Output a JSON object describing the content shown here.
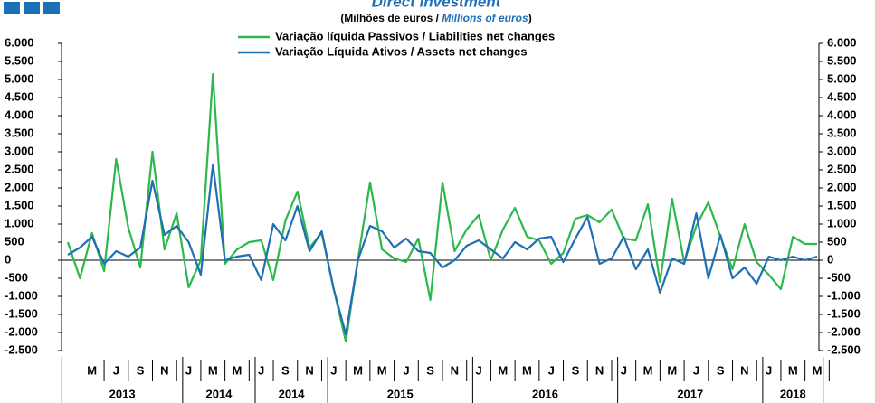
{
  "chart_data": {
    "type": "line",
    "title": "Direct investment",
    "subtitle": {
      "prefix": "(Milhões de euros / ",
      "emphasis": "Millions of euros",
      "suffix": ")"
    },
    "categories": [
      null,
      null,
      "M",
      null,
      "J",
      null,
      "S",
      null,
      "N",
      null,
      "J",
      null,
      "M",
      null,
      "M",
      null,
      "J",
      null,
      "S",
      null,
      "N",
      null,
      "J",
      null,
      "M",
      null,
      "M",
      null,
      "J",
      null,
      "S",
      null,
      "N",
      null,
      "J",
      null,
      "M",
      null,
      "M",
      null,
      "J",
      null,
      "S",
      null,
      "N",
      null,
      "J",
      null,
      "M",
      null,
      "M",
      null,
      "J",
      null,
      "S",
      null,
      "N",
      null,
      "J",
      null,
      "M",
      null,
      "M"
    ],
    "groups": [
      {
        "label": "2013",
        "first": 0,
        "last": 9
      },
      {
        "label": "2014",
        "first": 10,
        "last": 15
      },
      {
        "label": "2014",
        "first": 16,
        "last": 21
      },
      {
        "label": "2015",
        "first": 22,
        "last": 33
      },
      {
        "label": "2016",
        "first": 34,
        "last": 45
      },
      {
        "label": "2017",
        "first": 46,
        "last": 57
      },
      {
        "label": "2018",
        "first": 58,
        "last": 62
      }
    ],
    "series": [
      {
        "name": "Variação líquida Passivos / Liabilities net changes",
        "color": "#2db84d",
        "values": [
          500,
          -500,
          750,
          -300,
          2800,
          900,
          -200,
          3000,
          300,
          1300,
          -750,
          0,
          5150,
          -100,
          300,
          500,
          550,
          -550,
          1100,
          1900,
          350,
          750,
          -800,
          -2250,
          0,
          2150,
          300,
          50,
          -50,
          600,
          -1100,
          2150,
          250,
          850,
          1250,
          0,
          850,
          1450,
          650,
          550,
          -100,
          200,
          1150,
          1250,
          1050,
          1400,
          600,
          550,
          1550,
          -600,
          1700,
          -50,
          950,
          1600,
          650,
          -250,
          1000,
          -50,
          -400,
          -800,
          650,
          450,
          450
        ]
      },
      {
        "name": "Variação Líquida Ativos / Assets net changes",
        "color": "#1f6fb5",
        "values": [
          150,
          350,
          650,
          -100,
          250,
          100,
          350,
          2200,
          700,
          950,
          500,
          -400,
          2650,
          0,
          100,
          150,
          -550,
          1000,
          550,
          1500,
          250,
          800,
          -800,
          -2050,
          0,
          950,
          800,
          350,
          600,
          250,
          200,
          -200,
          0,
          400,
          550,
          300,
          50,
          500,
          300,
          600,
          650,
          -50,
          600,
          1200,
          -100,
          50,
          650,
          -250,
          300,
          -900,
          50,
          -100,
          1300,
          -500,
          700,
          -500,
          -200,
          -650,
          100,
          0,
          100,
          0,
          100
        ]
      }
    ],
    "ylim": [
      -2500,
      6000
    ],
    "yticks": [
      {
        "value": 6000,
        "label": "6.000"
      },
      {
        "value": 5500,
        "label": "5.500"
      },
      {
        "value": 5000,
        "label": "5.000"
      },
      {
        "value": 4500,
        "label": "4.500"
      },
      {
        "value": 4000,
        "label": "4.000"
      },
      {
        "value": 3500,
        "label": "3.500"
      },
      {
        "value": 3000,
        "label": "3.000"
      },
      {
        "value": 2500,
        "label": "2.500"
      },
      {
        "value": 2000,
        "label": "2.000"
      },
      {
        "value": 1500,
        "label": "1.500"
      },
      {
        "value": 1000,
        "label": "1.000"
      },
      500,
      0,
      -500,
      {
        "value": -1000,
        "label": "-1.000"
      },
      {
        "value": -1500,
        "label": "-1.500"
      },
      {
        "value": -2000,
        "label": "-2.000"
      },
      {
        "value": -2500,
        "label": "-2.500"
      }
    ],
    "y2lim": [
      -2500,
      6000
    ],
    "y2ticks": [
      {
        "value": 6000,
        "label": "6.000"
      },
      {
        "value": 5500,
        "label": "5.500"
      },
      {
        "value": 5000,
        "label": "5.000"
      },
      {
        "value": 4500,
        "label": "4.500"
      },
      {
        "value": 4000,
        "label": "4.000"
      },
      {
        "value": 3500,
        "label": "3.500"
      },
      {
        "value": 3000,
        "label": "3.000"
      },
      {
        "value": 2500,
        "label": "2.500"
      },
      {
        "value": 2000,
        "label": "2.000"
      },
      {
        "value": 1500,
        "label": "1.500"
      },
      {
        "value": 1000,
        "label": "1.000"
      },
      500,
      0,
      -500,
      {
        "value": -1000,
        "label": "-1.000"
      },
      {
        "value": -1500,
        "label": "-1.500"
      },
      {
        "value": -2000,
        "label": "-2.000"
      },
      {
        "value": -2500,
        "label": "-2.500"
      }
    ],
    "grid": false
  }
}
